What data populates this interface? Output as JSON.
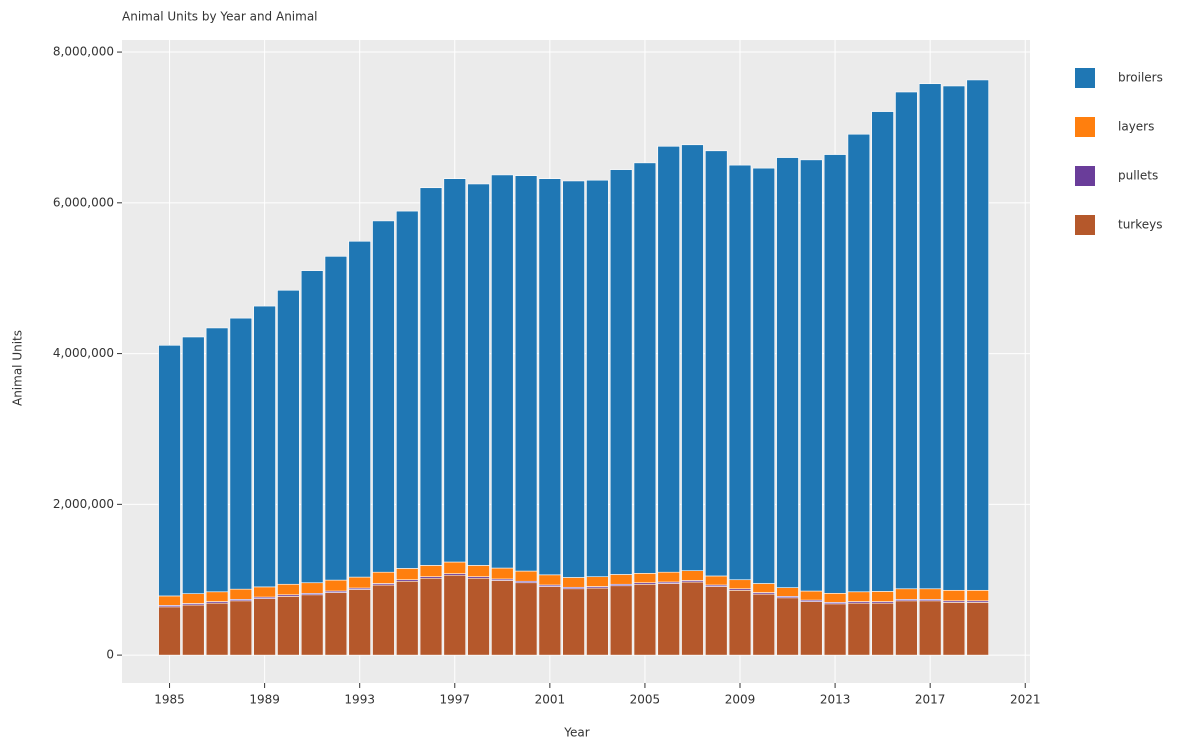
{
  "chart_data": {
    "type": "bar",
    "stacked": true,
    "title": "Animal Units by Year and Animal",
    "x_label": "Year",
    "y_label": "Animal Units",
    "x": [
      1985,
      1986,
      1987,
      1988,
      1989,
      1990,
      1991,
      1992,
      1993,
      1994,
      1995,
      1996,
      1997,
      1998,
      1999,
      2000,
      2001,
      2002,
      2003,
      2004,
      2005,
      2006,
      2007,
      2008,
      2009,
      2010,
      2011,
      2012,
      2013,
      2014,
      2015,
      2016,
      2017,
      2018,
      2019
    ],
    "series": [
      {
        "name": "broilers",
        "color": "#1f77b4",
        "values": [
          3325000,
          3405000,
          3500000,
          3595000,
          3725000,
          3900000,
          4140000,
          4295000,
          4455000,
          4660000,
          4740000,
          5010000,
          5085000,
          5060000,
          5215000,
          5245000,
          5255000,
          5260000,
          5260000,
          5370000,
          5445000,
          5650000,
          5650000,
          5640000,
          5500000,
          5510000,
          5705000,
          5720000,
          5820000,
          6070000,
          6365000,
          6590000,
          6700000,
          6690000,
          6770000
        ]
      },
      {
        "name": "layers",
        "color": "#ff7f0e",
        "values": [
          125000,
          130000,
          130000,
          135000,
          135000,
          140000,
          140000,
          145000,
          145000,
          150000,
          150000,
          150000,
          155000,
          150000,
          145000,
          135000,
          135000,
          130000,
          130000,
          130000,
          125000,
          130000,
          130000,
          120000,
          120000,
          120000,
          115000,
          120000,
          120000,
          130000,
          135000,
          140000,
          140000,
          140000,
          140000
        ]
      },
      {
        "name": "pullets",
        "color": "#6a3d9a",
        "values": [
          20000,
          20000,
          20000,
          20000,
          20000,
          20000,
          20000,
          20000,
          20000,
          20000,
          20000,
          20000,
          20000,
          20000,
          20000,
          20000,
          20000,
          20000,
          20000,
          20000,
          20000,
          20000,
          20000,
          20000,
          20000,
          20000,
          20000,
          20000,
          20000,
          20000,
          20000,
          20000,
          20000,
          20000,
          20000
        ]
      },
      {
        "name": "turkeys",
        "color": "#b5582b",
        "values": [
          640000,
          665000,
          690000,
          720000,
          750000,
          780000,
          800000,
          830000,
          870000,
          930000,
          980000,
          1020000,
          1060000,
          1020000,
          990000,
          960000,
          910000,
          880000,
          890000,
          920000,
          940000,
          950000,
          970000,
          910000,
          860000,
          810000,
          760000,
          710000,
          680000,
          690000,
          690000,
          720000,
          720000,
          700000,
          700000
        ]
      }
    ],
    "xlim": [
      1983,
      2021.2
    ],
    "xticks": [
      1985,
      1989,
      1993,
      1997,
      2001,
      2005,
      2009,
      2013,
      2017,
      2021
    ],
    "ylim": [
      -370000,
      8160000
    ],
    "yticks": [
      0,
      {
        "value": 2000000,
        "label": "2,000,000"
      },
      {
        "value": 4000000,
        "label": "4,000,000"
      },
      {
        "value": 6000000,
        "label": "6,000,000"
      },
      {
        "value": 8000000,
        "label": "8,000,000"
      }
    ],
    "grid": true,
    "legend": "right"
  }
}
